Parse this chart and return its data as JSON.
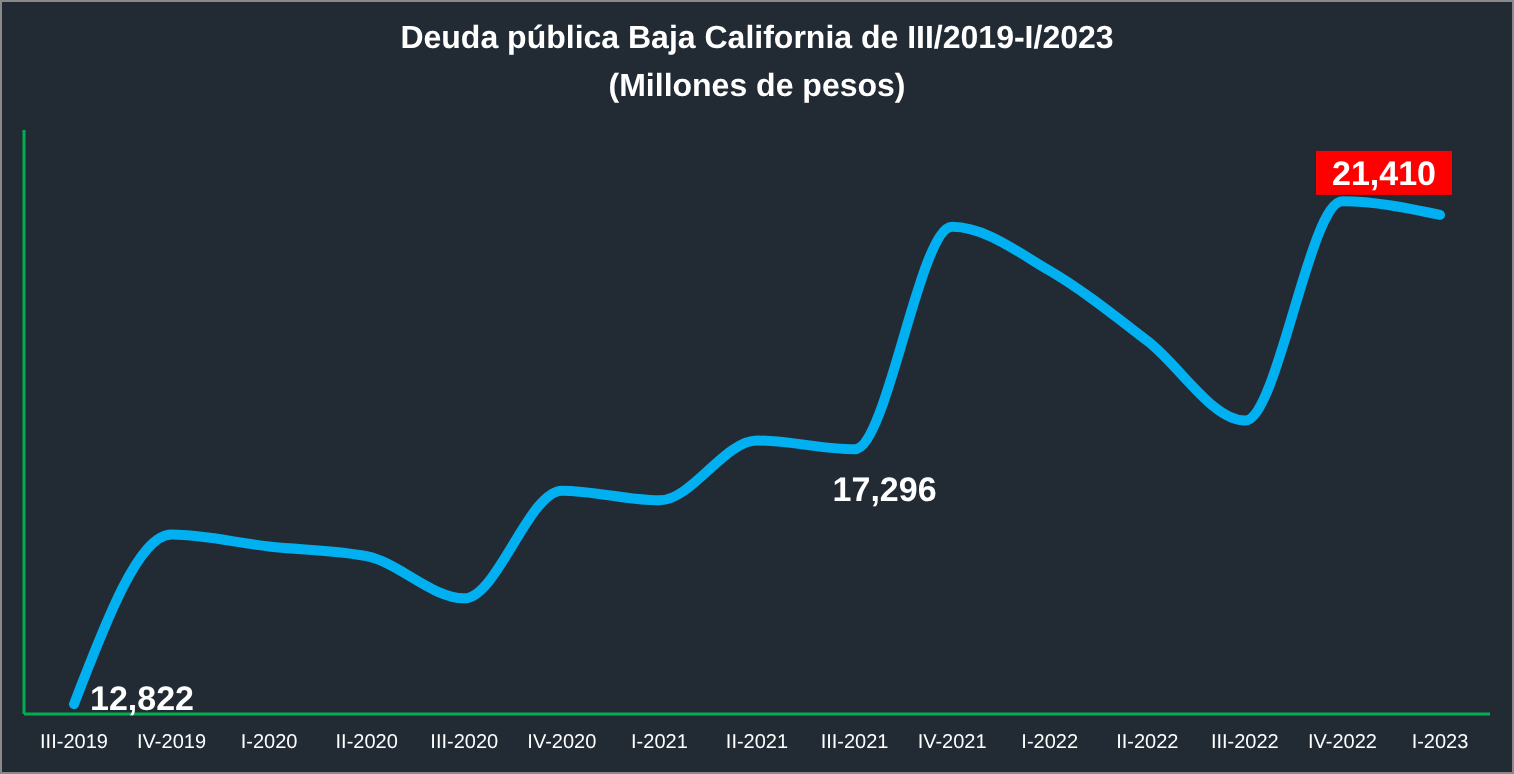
{
  "chart_data": {
    "type": "line",
    "title": "Deuda pública Baja California de III/2019-I/2023",
    "subtitle": "(Millones de pesos)",
    "categories": [
      "III-2019",
      "IV-2019",
      "I-2020",
      "II-2020",
      "III-2020",
      "IV-2020",
      "I-2021",
      "II-2021",
      "III-2021",
      "IV-2021",
      "I-2022",
      "II-2022",
      "III-2022",
      "IV-2022",
      "I-2023"
    ],
    "series": [
      {
        "color": "#00b0f0",
        "values": [
          12822,
          15800,
          15590,
          15420,
          14680,
          16570,
          16400,
          17450,
          17296,
          21200,
          20430,
          19200,
          17800,
          21650,
          21410
        ],
        "value_labels": [
          "12,822",
          null,
          null,
          null,
          null,
          null,
          null,
          null,
          "17,296",
          null,
          null,
          null,
          null,
          null,
          "21,410"
        ]
      }
    ],
    "ylim": [
      12650,
      22900
    ],
    "tick_labels": "x",
    "marker": "none",
    "line_style": "solid"
  }
}
